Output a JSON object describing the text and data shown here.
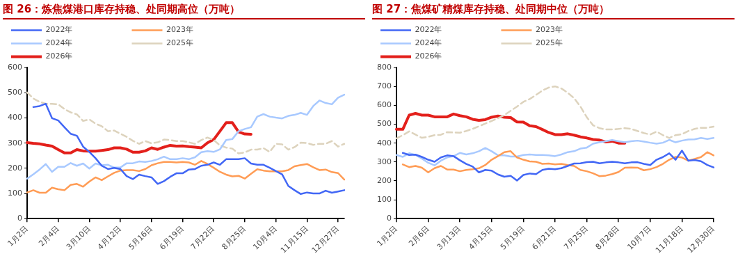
{
  "chart_data": [
    {
      "type": "line",
      "title": "图 26：炼焦煤港口库存持稳、处同期高位（万吨）",
      "categories": [
        "1月2日",
        null,
        null,
        null,
        null,
        "2月4日",
        null,
        null,
        null,
        null,
        "3月10日",
        null,
        null,
        null,
        null,
        "4月12日",
        null,
        null,
        null,
        null,
        "5月16日",
        null,
        null,
        null,
        null,
        "6月19日",
        null,
        null,
        null,
        null,
        "7月22日",
        null,
        null,
        null,
        null,
        "8月25日",
        null,
        null,
        null,
        null,
        "10月4日",
        null,
        null,
        null,
        null,
        "11月15日",
        null,
        null,
        null,
        null,
        "12月27日",
        null
      ],
      "ylim": [
        0,
        600
      ],
      "yticks": [
        0,
        100,
        200,
        300,
        400,
        500,
        600
      ],
      "grid": false,
      "legend": "top",
      "marker": "none",
      "series": [
        {
          "name": "2022年",
          "color": "#4267f5",
          "values": [
            null,
            443,
            447,
            456,
            399,
            390,
            363,
            337,
            329,
            286,
            265,
            240,
            210,
            197,
            202,
            197,
            169,
            157,
            175,
            169,
            164,
            138,
            149,
            166,
            180,
            180,
            195,
            197,
            210,
            214,
            223,
            214,
            236,
            236,
            236,
            240,
            219,
            214,
            214,
            202,
            189,
            176,
            130,
            113,
            98,
            104,
            100,
            100,
            111,
            103,
            108,
            113
          ]
        },
        {
          "name": "2023年",
          "color": "#ff9c55",
          "values": [
            104,
            113,
            103,
            103,
            123,
            117,
            113,
            134,
            138,
            127,
            147,
            164,
            153,
            168,
            182,
            191,
            193,
            193,
            189,
            197,
            212,
            220,
            225,
            225,
            223,
            225,
            223,
            214,
            229,
            217,
            202,
            186,
            175,
            168,
            170,
            159,
            178,
            196,
            191,
            188,
            188,
            188,
            193,
            208,
            213,
            217,
            204,
            193,
            195,
            185,
            181,
            155
          ]
        },
        {
          "name": "2024年",
          "color": "#a8c9ff",
          "values": [
            159,
            176,
            195,
            217,
            186,
            206,
            206,
            221,
            210,
            219,
            199,
            219,
            212,
            214,
            203,
            203,
            220,
            220,
            227,
            225,
            229,
            236,
            246,
            236,
            236,
            240,
            236,
            244,
            264,
            268,
            265,
            275,
            312,
            316,
            347,
            356,
            363,
            405,
            415,
            405,
            401,
            398,
            408,
            412,
            420,
            412,
            447,
            469,
            459,
            454,
            480,
            492
          ]
        },
        {
          "name": "2025年",
          "color": "#ddd3bd",
          "line_style": "dashed",
          "values": [
            501,
            477,
            464,
            456,
            456,
            454,
            435,
            422,
            414,
            388,
            394,
            377,
            367,
            347,
            350,
            337,
            325,
            309,
            297,
            308,
            299,
            303,
            314,
            312,
            308,
            308,
            303,
            297,
            312,
            322,
            312,
            291,
            282,
            278,
            259,
            263,
            274,
            274,
            280,
            265,
            297,
            295,
            274,
            284,
            302,
            300,
            293,
            297,
            297,
            308,
            286,
            297
          ]
        },
        {
          "name": "2026年",
          "color": "#e3201b",
          "values": [
            302,
            299,
            297,
            292,
            288,
            274,
            261,
            261,
            274,
            269,
            268,
            268,
            271,
            274,
            281,
            281,
            276,
            264,
            264,
            269,
            281,
            275,
            284,
            291,
            288,
            289,
            286,
            284,
            281,
            301,
            314,
            347,
            381,
            381,
            344,
            336,
            335,
            null,
            null,
            null,
            null,
            null,
            null,
            null,
            null,
            null,
            null,
            null,
            null,
            null,
            null,
            null
          ]
        }
      ]
    },
    {
      "type": "line",
      "title": "图 27：焦煤矿精煤库存持稳、处同期中位（万吨）",
      "categories": [
        "1月2日",
        null,
        null,
        null,
        null,
        "2月6日",
        null,
        null,
        null,
        null,
        "3月13日",
        null,
        null,
        null,
        null,
        "4月15日",
        null,
        null,
        null,
        null,
        "5月19日",
        null,
        null,
        null,
        null,
        "6月21日",
        null,
        null,
        null,
        null,
        "7月25日",
        null,
        null,
        null,
        null,
        "8月28日",
        null,
        null,
        null,
        null,
        "10月7日",
        null,
        null,
        null,
        null,
        "11月18日",
        null,
        null,
        null,
        null,
        "12月30日"
      ],
      "ylim": [
        0,
        800
      ],
      "yticks": [
        0,
        100,
        200,
        300,
        400,
        500,
        600,
        700,
        800
      ],
      "grid": false,
      "legend": "top",
      "marker": "none",
      "series": [
        {
          "name": "2022年",
          "color": "#4267f5",
          "values": [
            null,
            348,
            337,
            339,
            327,
            312,
            301,
            324,
            335,
            331,
            309,
            290,
            276,
            245,
            258,
            254,
            234,
            222,
            227,
            202,
            231,
            239,
            236,
            258,
            264,
            262,
            267,
            279,
            292,
            293,
            299,
            301,
            293,
            298,
            301,
            298,
            293,
            298,
            299,
            290,
            284,
            312,
            326,
            346,
            312,
            360,
            307,
            310,
            304,
            284,
            271
          ]
        },
        {
          "name": "2023年",
          "color": "#ff9c55",
          "values": [
            null,
            287,
            273,
            279,
            270,
            245,
            267,
            279,
            260,
            260,
            251,
            258,
            262,
            267,
            284,
            312,
            331,
            352,
            357,
            324,
            312,
            303,
            301,
            290,
            292,
            287,
            290,
            284,
            279,
            258,
            251,
            240,
            225,
            228,
            236,
            247,
            270,
            271,
            270,
            256,
            262,
            273,
            290,
            312,
            327,
            324,
            307,
            316,
            326,
            352,
            335
          ]
        },
        {
          "name": "2024年",
          "color": "#a8c9ff",
          "values": [
            337,
            327,
            346,
            337,
            318,
            296,
            282,
            307,
            324,
            331,
            348,
            340,
            346,
            357,
            374,
            357,
            335,
            335,
            329,
            329,
            337,
            340,
            337,
            337,
            335,
            331,
            340,
            352,
            357,
            371,
            376,
            397,
            404,
            410,
            416,
            410,
            404,
            410,
            413,
            408,
            402,
            397,
            402,
            417,
            404,
            413,
            419,
            420,
            427,
            422,
            427
          ]
        },
        {
          "name": "2025年",
          "color": "#ddd3bd",
          "line_style": "dashed",
          "values": [
            425,
            442,
            462,
            445,
            428,
            433,
            442,
            444,
            458,
            456,
            455,
            464,
            475,
            489,
            503,
            517,
            531,
            548,
            571,
            593,
            618,
            633,
            655,
            678,
            694,
            700,
            689,
            666,
            638,
            593,
            537,
            494,
            479,
            472,
            472,
            475,
            479,
            475,
            464,
            453,
            445,
            461,
            442,
            427,
            442,
            447,
            464,
            475,
            481,
            481,
            487
          ]
        },
        {
          "name": "2026年",
          "color": "#e3201b",
          "values": [
            473,
            473,
            548,
            557,
            548,
            548,
            539,
            539,
            539,
            554,
            545,
            539,
            526,
            520,
            524,
            537,
            543,
            537,
            535,
            512,
            511,
            492,
            487,
            472,
            456,
            445,
            445,
            449,
            442,
            433,
            427,
            419,
            416,
            406,
            410,
            400,
            400,
            null,
            null,
            null,
            null,
            null,
            null,
            null,
            null,
            null,
            null,
            null,
            null,
            null,
            null
          ]
        }
      ]
    }
  ]
}
